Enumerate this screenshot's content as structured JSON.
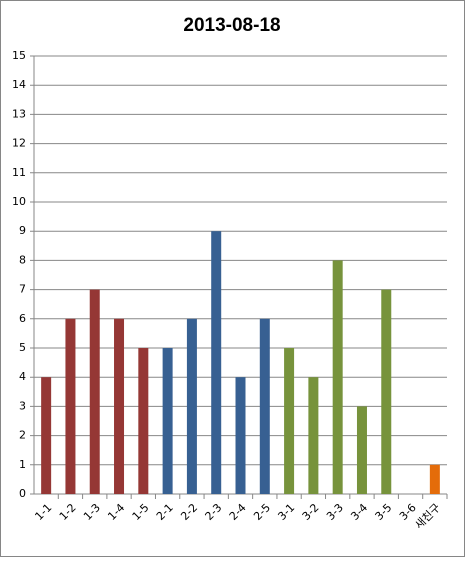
{
  "chart_data": {
    "type": "bar",
    "title": "2013-08-18",
    "categories": [
      "1-1",
      "1-2",
      "1-3",
      "1-4",
      "1-5",
      "2-1",
      "2-2",
      "2-3",
      "2-4",
      "2-5",
      "3-1",
      "3-2",
      "3-3",
      "3-4",
      "3-5",
      "3-6",
      "새친구"
    ],
    "values": [
      4,
      6,
      7,
      6,
      5,
      5,
      6,
      9,
      4,
      6,
      5,
      4,
      8,
      3,
      7,
      0,
      1
    ],
    "colors": [
      "#953735",
      "#953735",
      "#953735",
      "#953735",
      "#953735",
      "#376092",
      "#376092",
      "#376092",
      "#376092",
      "#376092",
      "#77933c",
      "#77933c",
      "#77933c",
      "#77933c",
      "#77933c",
      "#77933c",
      "#e46c0a"
    ],
    "ylim": [
      0,
      15
    ],
    "yticks": [
      0,
      1,
      2,
      3,
      4,
      5,
      6,
      7,
      8,
      9,
      10,
      11,
      12,
      13,
      14,
      15
    ],
    "grid": true
  }
}
